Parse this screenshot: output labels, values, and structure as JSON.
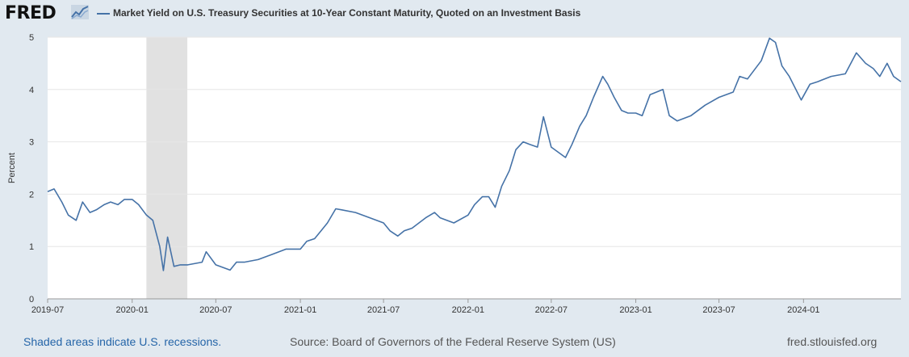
{
  "header": {
    "logo_text": "FRED",
    "title": "Market Yield on U.S. Treasury Securities at 10-Year Constant Maturity, Quoted on an Investment Basis"
  },
  "colors": {
    "line": "#4572a7",
    "recession": "#e1e1e1",
    "background": "#e1e9f0"
  },
  "footer": {
    "recession_note": "Shaded areas indicate U.S. recessions.",
    "source": "Source: Board of Governors of the Federal Reserve System (US)",
    "url": "fred.stlouisfed.org"
  },
  "chart_data": {
    "type": "line",
    "title": "Market Yield on U.S. Treasury Securities at 10-Year Constant Maturity, Quoted on an Investment Basis",
    "xlabel": "",
    "ylabel": "Percent",
    "ylim": [
      0,
      5
    ],
    "xlim": [
      "2019-07-01",
      "2024-07-31"
    ],
    "yticks": [
      "0",
      "1",
      "2",
      "3",
      "4",
      "5"
    ],
    "xticks": [
      "2019-07",
      "2020-01",
      "2020-07",
      "2021-01",
      "2021-07",
      "2022-01",
      "2022-07",
      "2023-01",
      "2023-07",
      "2024-01"
    ],
    "grid": true,
    "legend": "top-left",
    "recessions": [
      {
        "start": "2020-02-01",
        "end": "2020-04-30"
      }
    ],
    "series": [
      {
        "name": "Market Yield on U.S. Treasury Securities at 10-Year Constant Maturity, Quoted on an Investment Basis",
        "x": [
          "2019-07-01",
          "2019-07-15",
          "2019-08-01",
          "2019-08-15",
          "2019-09-01",
          "2019-09-15",
          "2019-10-01",
          "2019-10-15",
          "2019-11-01",
          "2019-11-15",
          "2019-12-01",
          "2019-12-15",
          "2020-01-01",
          "2020-01-15",
          "2020-02-01",
          "2020-02-15",
          "2020-03-01",
          "2020-03-09",
          "2020-03-18",
          "2020-04-01",
          "2020-04-15",
          "2020-05-01",
          "2020-06-01",
          "2020-06-10",
          "2020-07-01",
          "2020-08-01",
          "2020-08-15",
          "2020-09-01",
          "2020-10-01",
          "2020-11-01",
          "2020-12-01",
          "2021-01-01",
          "2021-01-15",
          "2021-02-01",
          "2021-02-15",
          "2021-03-01",
          "2021-03-19",
          "2021-04-01",
          "2021-05-01",
          "2021-06-01",
          "2021-07-01",
          "2021-07-15",
          "2021-08-01",
          "2021-08-15",
          "2021-09-01",
          "2021-10-01",
          "2021-10-20",
          "2021-11-01",
          "2021-12-01",
          "2022-01-01",
          "2022-01-15",
          "2022-02-01",
          "2022-02-15",
          "2022-03-01",
          "2022-03-15",
          "2022-04-01",
          "2022-04-15",
          "2022-05-01",
          "2022-05-15",
          "2022-06-01",
          "2022-06-14",
          "2022-07-01",
          "2022-08-01",
          "2022-08-15",
          "2022-09-01",
          "2022-09-15",
          "2022-10-01",
          "2022-10-21",
          "2022-11-01",
          "2022-11-15",
          "2022-12-01",
          "2022-12-15",
          "2023-01-01",
          "2023-01-15",
          "2023-02-01",
          "2023-03-01",
          "2023-03-15",
          "2023-04-01",
          "2023-05-01",
          "2023-06-01",
          "2023-07-01",
          "2023-08-01",
          "2023-08-15",
          "2023-09-01",
          "2023-10-01",
          "2023-10-19",
          "2023-11-01",
          "2023-11-15",
          "2023-12-01",
          "2023-12-27",
          "2024-01-15",
          "2024-02-01",
          "2024-03-01",
          "2024-04-01",
          "2024-04-25",
          "2024-05-15",
          "2024-06-01",
          "2024-06-15",
          "2024-07-01",
          "2024-07-15",
          "2024-07-31"
        ],
        "values": [
          2.05,
          2.1,
          1.85,
          1.6,
          1.5,
          1.85,
          1.65,
          1.7,
          1.8,
          1.85,
          1.8,
          1.9,
          1.9,
          1.8,
          1.6,
          1.5,
          1.0,
          0.54,
          1.18,
          0.62,
          0.65,
          0.65,
          0.7,
          0.9,
          0.65,
          0.55,
          0.7,
          0.7,
          0.75,
          0.85,
          0.95,
          0.95,
          1.1,
          1.15,
          1.3,
          1.45,
          1.72,
          1.7,
          1.65,
          1.55,
          1.45,
          1.3,
          1.2,
          1.3,
          1.35,
          1.55,
          1.65,
          1.55,
          1.45,
          1.6,
          1.8,
          1.95,
          1.95,
          1.75,
          2.15,
          2.45,
          2.85,
          3.0,
          2.95,
          2.9,
          3.48,
          2.9,
          2.7,
          2.95,
          3.3,
          3.5,
          3.85,
          4.25,
          4.1,
          3.85,
          3.6,
          3.55,
          3.55,
          3.5,
          3.9,
          4.0,
          3.5,
          3.4,
          3.5,
          3.7,
          3.85,
          3.95,
          4.25,
          4.2,
          4.55,
          4.98,
          4.9,
          4.45,
          4.25,
          3.8,
          4.1,
          4.15,
          4.25,
          4.3,
          4.7,
          4.5,
          4.4,
          4.25,
          4.5,
          4.25,
          4.15
        ]
      }
    ]
  }
}
